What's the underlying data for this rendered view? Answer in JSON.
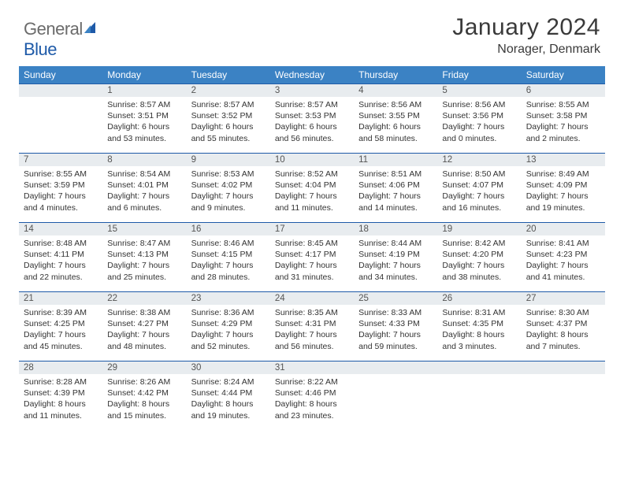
{
  "logo": {
    "general": "General",
    "blue": "Blue"
  },
  "title": "January 2024",
  "location": "Norager, Denmark",
  "colors": {
    "header_bg": "#3b82c4",
    "header_text": "#ffffff",
    "daybar_bg": "#e8ecef",
    "daybar_border": "#1e5aa8",
    "body_text": "#333333",
    "logo_gray": "#6b6b6b",
    "logo_blue": "#1e5aa8"
  },
  "weekdays": [
    "Sunday",
    "Monday",
    "Tuesday",
    "Wednesday",
    "Thursday",
    "Friday",
    "Saturday"
  ],
  "start_offset": 1,
  "days": [
    {
      "n": 1,
      "sr": "8:57 AM",
      "ss": "3:51 PM",
      "dl": "6 hours and 53 minutes."
    },
    {
      "n": 2,
      "sr": "8:57 AM",
      "ss": "3:52 PM",
      "dl": "6 hours and 55 minutes."
    },
    {
      "n": 3,
      "sr": "8:57 AM",
      "ss": "3:53 PM",
      "dl": "6 hours and 56 minutes."
    },
    {
      "n": 4,
      "sr": "8:56 AM",
      "ss": "3:55 PM",
      "dl": "6 hours and 58 minutes."
    },
    {
      "n": 5,
      "sr": "8:56 AM",
      "ss": "3:56 PM",
      "dl": "7 hours and 0 minutes."
    },
    {
      "n": 6,
      "sr": "8:55 AM",
      "ss": "3:58 PM",
      "dl": "7 hours and 2 minutes."
    },
    {
      "n": 7,
      "sr": "8:55 AM",
      "ss": "3:59 PM",
      "dl": "7 hours and 4 minutes."
    },
    {
      "n": 8,
      "sr": "8:54 AM",
      "ss": "4:01 PM",
      "dl": "7 hours and 6 minutes."
    },
    {
      "n": 9,
      "sr": "8:53 AM",
      "ss": "4:02 PM",
      "dl": "7 hours and 9 minutes."
    },
    {
      "n": 10,
      "sr": "8:52 AM",
      "ss": "4:04 PM",
      "dl": "7 hours and 11 minutes."
    },
    {
      "n": 11,
      "sr": "8:51 AM",
      "ss": "4:06 PM",
      "dl": "7 hours and 14 minutes."
    },
    {
      "n": 12,
      "sr": "8:50 AM",
      "ss": "4:07 PM",
      "dl": "7 hours and 16 minutes."
    },
    {
      "n": 13,
      "sr": "8:49 AM",
      "ss": "4:09 PM",
      "dl": "7 hours and 19 minutes."
    },
    {
      "n": 14,
      "sr": "8:48 AM",
      "ss": "4:11 PM",
      "dl": "7 hours and 22 minutes."
    },
    {
      "n": 15,
      "sr": "8:47 AM",
      "ss": "4:13 PM",
      "dl": "7 hours and 25 minutes."
    },
    {
      "n": 16,
      "sr": "8:46 AM",
      "ss": "4:15 PM",
      "dl": "7 hours and 28 minutes."
    },
    {
      "n": 17,
      "sr": "8:45 AM",
      "ss": "4:17 PM",
      "dl": "7 hours and 31 minutes."
    },
    {
      "n": 18,
      "sr": "8:44 AM",
      "ss": "4:19 PM",
      "dl": "7 hours and 34 minutes."
    },
    {
      "n": 19,
      "sr": "8:42 AM",
      "ss": "4:20 PM",
      "dl": "7 hours and 38 minutes."
    },
    {
      "n": 20,
      "sr": "8:41 AM",
      "ss": "4:23 PM",
      "dl": "7 hours and 41 minutes."
    },
    {
      "n": 21,
      "sr": "8:39 AM",
      "ss": "4:25 PM",
      "dl": "7 hours and 45 minutes."
    },
    {
      "n": 22,
      "sr": "8:38 AM",
      "ss": "4:27 PM",
      "dl": "7 hours and 48 minutes."
    },
    {
      "n": 23,
      "sr": "8:36 AM",
      "ss": "4:29 PM",
      "dl": "7 hours and 52 minutes."
    },
    {
      "n": 24,
      "sr": "8:35 AM",
      "ss": "4:31 PM",
      "dl": "7 hours and 56 minutes."
    },
    {
      "n": 25,
      "sr": "8:33 AM",
      "ss": "4:33 PM",
      "dl": "7 hours and 59 minutes."
    },
    {
      "n": 26,
      "sr": "8:31 AM",
      "ss": "4:35 PM",
      "dl": "8 hours and 3 minutes."
    },
    {
      "n": 27,
      "sr": "8:30 AM",
      "ss": "4:37 PM",
      "dl": "8 hours and 7 minutes."
    },
    {
      "n": 28,
      "sr": "8:28 AM",
      "ss": "4:39 PM",
      "dl": "8 hours and 11 minutes."
    },
    {
      "n": 29,
      "sr": "8:26 AM",
      "ss": "4:42 PM",
      "dl": "8 hours and 15 minutes."
    },
    {
      "n": 30,
      "sr": "8:24 AM",
      "ss": "4:44 PM",
      "dl": "8 hours and 19 minutes."
    },
    {
      "n": 31,
      "sr": "8:22 AM",
      "ss": "4:46 PM",
      "dl": "8 hours and 23 minutes."
    }
  ],
  "labels": {
    "sunrise": "Sunrise:",
    "sunset": "Sunset:",
    "daylight": "Daylight:"
  }
}
